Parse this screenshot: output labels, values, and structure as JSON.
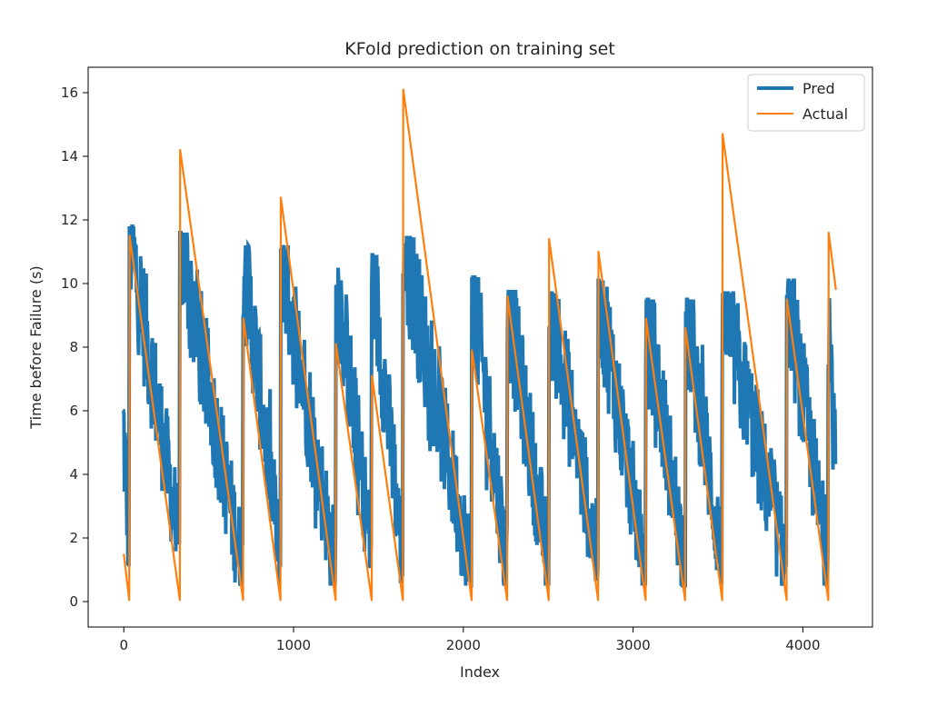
{
  "chart_data": {
    "type": "line",
    "title": "KFold prediction on training set",
    "xlabel": "Index",
    "ylabel": "Time before Failure (s)",
    "xlim": [
      -210,
      4410
    ],
    "ylim": [
      -0.8,
      16.8
    ],
    "xticks": [
      0,
      1000,
      2000,
      3000,
      4000
    ],
    "yticks": [
      0,
      2,
      4,
      6,
      8,
      10,
      12,
      14,
      16
    ],
    "grid": false,
    "legend_position": "top-right",
    "series": [
      {
        "name": "Pred",
        "color": "#1f77b4",
        "style": "noisy-band",
        "x_max": 4195,
        "cycles": [
          {
            "x0": -5,
            "x1": 33,
            "y_start": 5.8,
            "y_end": 1.5
          },
          {
            "x0": 33,
            "x1": 330,
            "y_start": 11.6,
            "y_end": 1.8
          },
          {
            "x0": 330,
            "x1": 703,
            "y_start": 11.4,
            "y_end": 0.9
          },
          {
            "x0": 703,
            "x1": 925,
            "y_start": 11.0,
            "y_end": 1.2
          },
          {
            "x0": 925,
            "x1": 1250,
            "y_start": 11.0,
            "y_end": 1.0
          },
          {
            "x0": 1250,
            "x1": 1460,
            "y_start": 10.3,
            "y_end": 1.5
          },
          {
            "x0": 1460,
            "x1": 1645,
            "y_start": 10.7,
            "y_end": 1.2
          },
          {
            "x0": 1645,
            "x1": 2050,
            "y_start": 11.3,
            "y_end": 0.9
          },
          {
            "x0": 2050,
            "x1": 2260,
            "y_start": 10.0,
            "y_end": 1.0
          },
          {
            "x0": 2260,
            "x1": 2505,
            "y_start": 9.6,
            "y_end": 0.9
          },
          {
            "x0": 2505,
            "x1": 2795,
            "y_start": 9.5,
            "y_end": 1.3
          },
          {
            "x0": 2795,
            "x1": 3075,
            "y_start": 9.9,
            "y_end": 0.9
          },
          {
            "x0": 3075,
            "x1": 3310,
            "y_start": 9.3,
            "y_end": 1.0
          },
          {
            "x0": 3310,
            "x1": 3525,
            "y_start": 9.3,
            "y_end": 1.2
          },
          {
            "x0": 3525,
            "x1": 3905,
            "y_start": 9.5,
            "y_end": 1.1
          },
          {
            "x0": 3905,
            "x1": 4150,
            "y_start": 9.9,
            "y_end": 1.0
          },
          {
            "x0": 4150,
            "x1": 4195,
            "y_start": 9.4,
            "y_end": 3.7
          }
        ]
      },
      {
        "name": "Actual",
        "color": "#ff7f0e",
        "x": [
          0,
          32,
          34,
          330,
          332,
          703,
          705,
          923,
          925,
          1248,
          1250,
          1460,
          1462,
          1644,
          1646,
          2049,
          2051,
          2258,
          2260,
          2503,
          2505,
          2794,
          2796,
          3074,
          3076,
          3306,
          3308,
          3525,
          3527,
          3904,
          3906,
          4150,
          4152,
          4195
        ],
        "y": [
          1.5,
          0.05,
          11.5,
          0.05,
          14.2,
          0.05,
          8.9,
          0.05,
          12.7,
          0.05,
          8.1,
          0.05,
          7.1,
          0.05,
          16.1,
          0.05,
          7.9,
          0.05,
          9.6,
          0.05,
          11.4,
          0.05,
          11.0,
          0.05,
          8.9,
          0.05,
          8.6,
          0.05,
          14.7,
          0.05,
          9.5,
          0.05,
          11.6,
          9.8
        ]
      }
    ]
  }
}
